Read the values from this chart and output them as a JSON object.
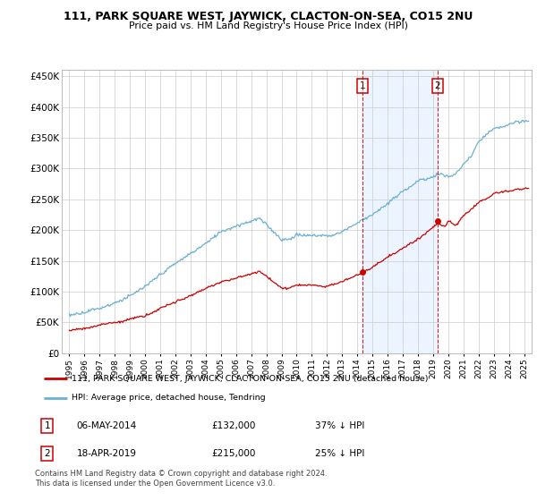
{
  "title": "111, PARK SQUARE WEST, JAYWICK, CLACTON-ON-SEA, CO15 2NU",
  "subtitle": "Price paid vs. HM Land Registry's House Price Index (HPI)",
  "ylabel_ticks": [
    "£0",
    "£50K",
    "£100K",
    "£150K",
    "£200K",
    "£250K",
    "£300K",
    "£350K",
    "£400K",
    "£450K"
  ],
  "ytick_values": [
    0,
    50000,
    100000,
    150000,
    200000,
    250000,
    300000,
    350000,
    400000,
    450000
  ],
  "ylim": [
    0,
    460000
  ],
  "xlim_start": 1994.5,
  "xlim_end": 2025.5,
  "hpi_color": "#6ab0d4",
  "price_color": "#cc0000",
  "purchase1_date": 2014.35,
  "purchase1_price": 132000,
  "purchase2_date": 2019.29,
  "purchase2_price": 215000,
  "vline_color": "#cc0000",
  "shade_color": "#ddeeff",
  "legend_label1": "111, PARK SQUARE WEST, JAYWICK, CLACTON-ON-SEA, CO15 2NU (detached house)",
  "legend_label2": "HPI: Average price, detached house, Tendring",
  "note1_num": "1",
  "note1_date": "06-MAY-2014",
  "note1_price": "£132,000",
  "note1_pct": "37% ↓ HPI",
  "note2_num": "2",
  "note2_date": "18-APR-2019",
  "note2_price": "£215,000",
  "note2_pct": "25% ↓ HPI",
  "footer": "Contains HM Land Registry data © Crown copyright and database right 2024.\nThis data is licensed under the Open Government Licence v3.0.",
  "xtick_years": [
    1995,
    1996,
    1997,
    1998,
    1999,
    2000,
    2001,
    2002,
    2003,
    2004,
    2005,
    2006,
    2007,
    2008,
    2009,
    2010,
    2011,
    2012,
    2013,
    2014,
    2015,
    2016,
    2017,
    2018,
    2019,
    2020,
    2021,
    2022,
    2023,
    2024,
    2025
  ]
}
